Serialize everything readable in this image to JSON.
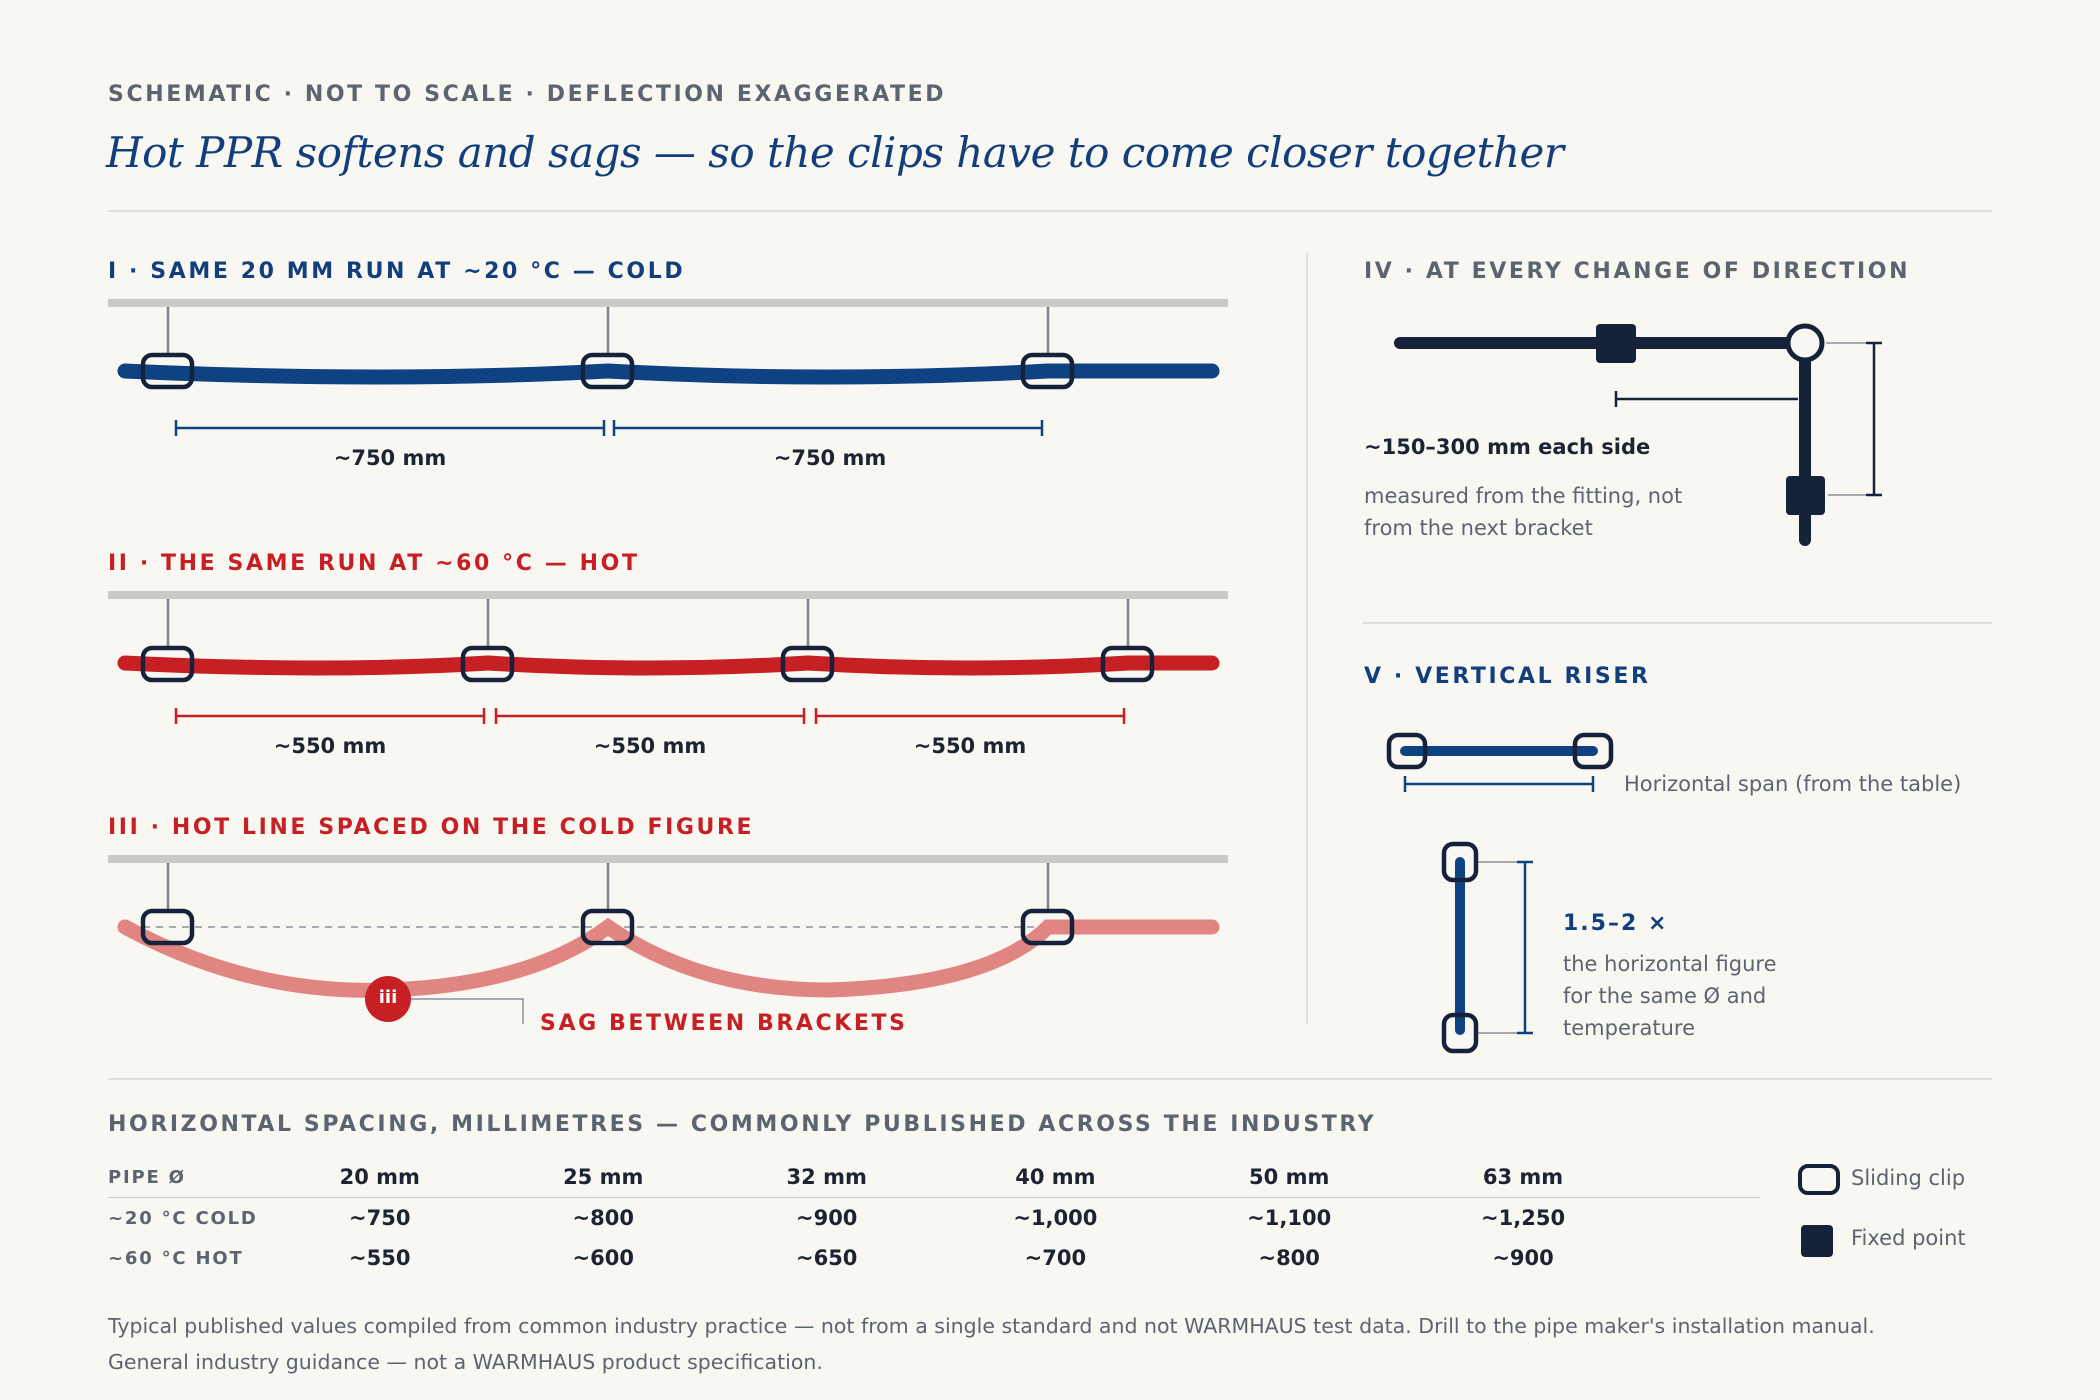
{
  "header": {
    "kicker": "SCHEMATIC · NOT TO SCALE · DEFLECTION EXAGGERATED",
    "title": "Hot PPR softens and sags — so the clips have to come closer together"
  },
  "panels": {
    "cold": {
      "title": "I · SAME 20 MM RUN AT ~20 °C — COLD",
      "spans": [
        "~750 mm",
        "~750 mm"
      ]
    },
    "hot": {
      "title": "II · THE SAME RUN AT ~60 °C — HOT",
      "spans": [
        "~550 mm",
        "~550 mm",
        "~550 mm"
      ]
    },
    "hot_on_cold": {
      "title": "III · HOT LINE SPACED ON THE COLD FIGURE",
      "marker": "iii",
      "callout": "SAG BETWEEN BRACKETS"
    },
    "direction": {
      "title": "IV · AT EVERY CHANGE OF DIRECTION",
      "measure": "~150–300 mm each side",
      "note": "measured from the fitting, not from the next bracket"
    },
    "riser": {
      "title": "V · VERTICAL RISER",
      "horizontal_label": "Horizontal span (from the table)",
      "multiplier": "1.5–2 ×",
      "note": "the horizontal figure for the same Ø and temperature"
    }
  },
  "table": {
    "title": "HORIZONTAL SPACING, MILLIMETRES — COMMONLY PUBLISHED ACROSS THE INDUSTRY",
    "header_label": "PIPE Ø",
    "columns": [
      "20 mm",
      "25 mm",
      "32 mm",
      "40 mm",
      "50 mm",
      "63 mm"
    ],
    "rows": [
      {
        "label": "~20 °C COLD",
        "values": [
          "~750",
          "~800",
          "~900",
          "~1,000",
          "~1,100",
          "~1,250"
        ]
      },
      {
        "label": "~60 °C HOT",
        "values": [
          "~550",
          "~600",
          "~650",
          "~700",
          "~800",
          "~900"
        ]
      }
    ]
  },
  "legend": {
    "sliding": "Sliding clip",
    "fixed": "Fixed point"
  },
  "footnotes": [
    "Typical published values compiled from common industry practice — not from a single standard and not WARMHAUS test data. Drill to the pipe maker's installation manual.",
    "General industry guidance — not a WARMHAUS product specification."
  ],
  "colors": {
    "cold": "#0f4283",
    "hot": "#c62025",
    "hot_faded": "#e08581",
    "navy": "#16223a",
    "ceiling": "#c9c9c6"
  }
}
